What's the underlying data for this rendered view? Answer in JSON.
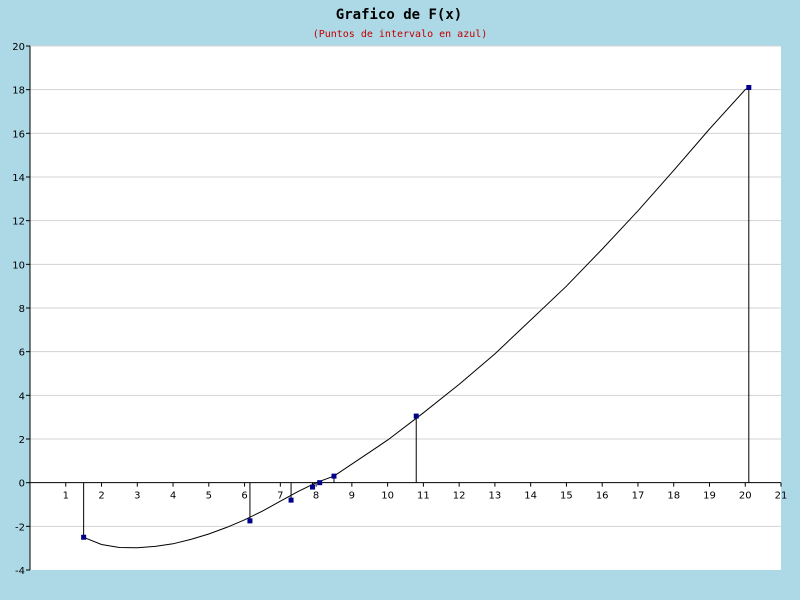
{
  "chart_data": {
    "type": "line",
    "title": "Grafico de F(x)",
    "subtitle": "(Puntos de intervalo en azul)",
    "xlabel": "",
    "ylabel": "",
    "xlim": [
      0,
      21
    ],
    "ylim": [
      -4,
      20
    ],
    "x_ticks": [
      "1",
      "2",
      "3",
      "4",
      "5",
      "6",
      "7",
      "8",
      "9",
      "10",
      "11",
      "12",
      "13",
      "14",
      "15",
      "16",
      "17",
      "18",
      "19",
      "20",
      "21"
    ],
    "y_ticks": [
      "-4",
      "-2",
      "0",
      "2",
      "4",
      "6",
      "8",
      "10",
      "12",
      "14",
      "16",
      "18",
      "20"
    ],
    "grid": "horizontal",
    "curve": {
      "x": [
        1.5,
        2,
        2.5,
        3,
        3.5,
        4,
        4.5,
        5,
        5.5,
        6,
        6.5,
        7,
        7.5,
        8,
        8.5,
        9,
        10,
        11,
        12,
        13,
        14,
        15,
        16,
        17,
        18,
        19,
        20,
        20.1
      ],
      "y": [
        -2.5,
        -2.83,
        -2.97,
        -2.98,
        -2.92,
        -2.8,
        -2.6,
        -2.35,
        -2.05,
        -1.7,
        -1.3,
        -0.85,
        -0.4,
        0.0,
        0.3,
        0.85,
        1.95,
        3.2,
        4.5,
        5.9,
        7.45,
        9.0,
        10.7,
        12.45,
        14.3,
        16.2,
        18.0,
        18.1
      ],
      "color": "#000000"
    },
    "interval_points": {
      "x": [
        1.5,
        6.15,
        7.3,
        7.9,
        8.1,
        8.5,
        10.8,
        20.1
      ],
      "y": [
        -2.5,
        -1.75,
        -0.8,
        -0.2,
        0.0,
        0.3,
        3.05,
        18.1
      ],
      "color": "#00008b"
    },
    "colors": {
      "background": "#add8e6",
      "plot_area": "#ffffff",
      "grid": "#d3d3d3",
      "axis": "#000000",
      "subtitle": "#c00000"
    }
  }
}
